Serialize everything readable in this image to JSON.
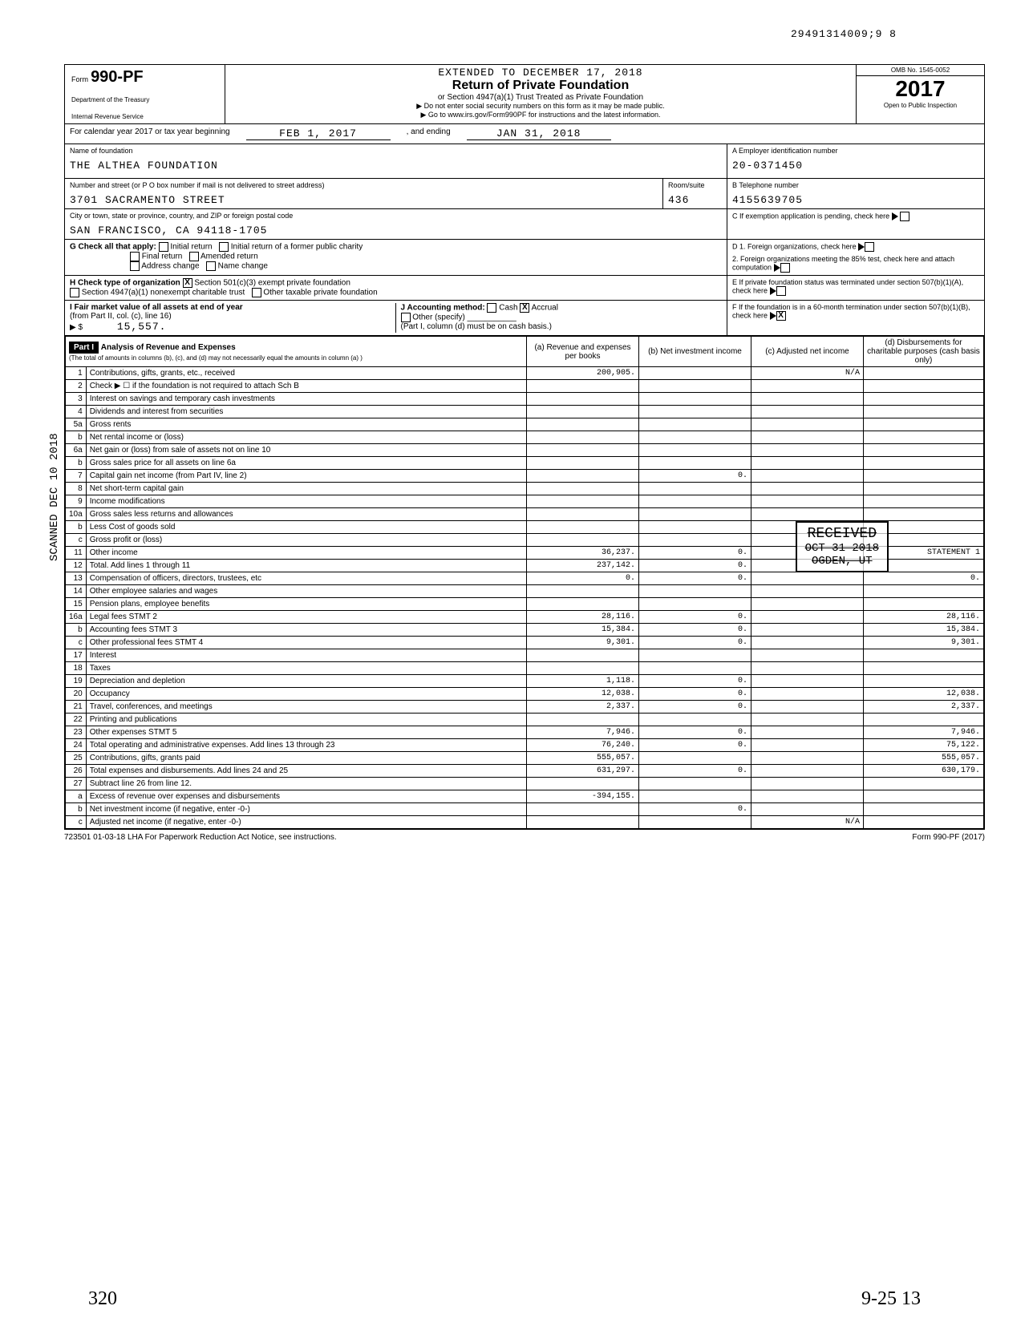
{
  "header_number": "29491314009;9  8",
  "form": {
    "label": "Form",
    "number": "990-PF",
    "dept1": "Department of the Treasury",
    "dept2": "Internal Revenue Service",
    "extended": "EXTENDED TO DECEMBER 17, 2018",
    "title": "Return of Private Foundation",
    "subtitle": "or Section 4947(a)(1) Trust Treated as Private Foundation",
    "instr1": "▶ Do not enter social security numbers on this form as it may be made public.",
    "instr2": "▶ Go to www.irs.gov/Form990PF for instructions and the latest information.",
    "omb": "OMB No. 1545-0052",
    "year": "2017",
    "inspect": "Open to Public Inspection"
  },
  "calendar": {
    "prefix": "For calendar year 2017 or tax year beginning",
    "begin": "FEB 1, 2017",
    "mid": ", and ending",
    "end": "JAN 31, 2018"
  },
  "foundation": {
    "name_label": "Name of foundation",
    "name": "THE ALTHEA FOUNDATION",
    "street_label": "Number and street (or P O  box number if mail is not delivered to street address)",
    "street": "3701 SACRAMENTO STREET",
    "room_label": "Room/suite",
    "room": "436",
    "city_label": "City or town, state or province, country, and ZIP or foreign postal code",
    "city": "SAN FRANCISCO, CA  94118-1705"
  },
  "right": {
    "a_label": "A Employer identification number",
    "a_value": "20-0371450",
    "b_label": "B Telephone number",
    "b_value": "4155639705",
    "c_label": "C  If exemption application is pending, check here",
    "d1": "D 1. Foreign organizations, check here",
    "d2": "2. Foreign organizations meeting the 85% test, check here and attach computation",
    "e": "E  If private foundation status was terminated under section 507(b)(1)(A), check here",
    "f": "F  If the foundation is in a 60-month termination under section 507(b)(1)(B), check here"
  },
  "section_g": {
    "label": "G  Check all that apply:",
    "opts": [
      "Initial return",
      "Final return",
      "Address change",
      "Initial return of a former public charity",
      "Amended return",
      "Name change"
    ]
  },
  "section_h": {
    "label": "H  Check type of organization",
    "opt1": "Section 501(c)(3) exempt private foundation",
    "opt2": "Section 4947(a)(1) nonexempt charitable trust",
    "opt3": "Other taxable private foundation"
  },
  "section_i": {
    "label": "I  Fair market value of all assets at end of year",
    "sub": "(from Part II, col. (c), line 16)",
    "value": "15,557.",
    "j_label": "J  Accounting method:",
    "cash": "Cash",
    "accrual": "Accrual",
    "other": "Other (specify)",
    "note": "(Part I, column (d) must be on cash basis.)"
  },
  "part1": {
    "header": "Part I",
    "title": "Analysis of Revenue and Expenses",
    "subtitle": "(The total of amounts in columns (b), (c), and (d) may not necessarily equal the amounts in column (a) )",
    "col_a": "(a) Revenue and expenses per books",
    "col_b": "(b) Net investment income",
    "col_c": "(c) Adjusted net income",
    "col_d": "(d) Disbursements for charitable purposes (cash basis only)"
  },
  "lines": [
    {
      "n": "1",
      "label": "Contributions, gifts, grants, etc., received",
      "a": "200,905.",
      "b": "",
      "c": "N/A",
      "d": ""
    },
    {
      "n": "2",
      "label": "Check ▶ ☐ if the foundation is not required to attach Sch B",
      "a": "",
      "b": "",
      "c": "",
      "d": ""
    },
    {
      "n": "3",
      "label": "Interest on savings and temporary cash investments",
      "a": "",
      "b": "",
      "c": "",
      "d": ""
    },
    {
      "n": "4",
      "label": "Dividends and interest from securities",
      "a": "",
      "b": "",
      "c": "",
      "d": ""
    },
    {
      "n": "5a",
      "label": "Gross rents",
      "a": "",
      "b": "",
      "c": "",
      "d": ""
    },
    {
      "n": "b",
      "label": "Net rental income or (loss)",
      "a": "",
      "b": "",
      "c": "",
      "d": ""
    },
    {
      "n": "6a",
      "label": "Net gain or (loss) from sale of assets not on line 10",
      "a": "",
      "b": "",
      "c": "",
      "d": ""
    },
    {
      "n": "b",
      "label": "Gross sales price for all assets on line 6a",
      "a": "",
      "b": "",
      "c": "",
      "d": ""
    },
    {
      "n": "7",
      "label": "Capital gain net income (from Part IV, line 2)",
      "a": "",
      "b": "0.",
      "c": "",
      "d": ""
    },
    {
      "n": "8",
      "label": "Net short-term capital gain",
      "a": "",
      "b": "",
      "c": "",
      "d": ""
    },
    {
      "n": "9",
      "label": "Income modifications",
      "a": "",
      "b": "",
      "c": "",
      "d": ""
    },
    {
      "n": "10a",
      "label": "Gross sales less returns and allowances",
      "a": "",
      "b": "",
      "c": "",
      "d": ""
    },
    {
      "n": "b",
      "label": "Less Cost of goods sold",
      "a": "",
      "b": "",
      "c": "",
      "d": ""
    },
    {
      "n": "c",
      "label": "Gross profit or (loss)",
      "a": "",
      "b": "",
      "c": "",
      "d": ""
    },
    {
      "n": "11",
      "label": "Other income",
      "a": "36,237.",
      "b": "0.",
      "c": "",
      "d": "STATEMENT 1"
    },
    {
      "n": "12",
      "label": "Total. Add lines 1 through 11",
      "a": "237,142.",
      "b": "0.",
      "c": "",
      "d": ""
    },
    {
      "n": "13",
      "label": "Compensation of officers, directors, trustees, etc",
      "a": "0.",
      "b": "0.",
      "c": "",
      "d": "0."
    },
    {
      "n": "14",
      "label": "Other employee salaries and wages",
      "a": "",
      "b": "",
      "c": "",
      "d": ""
    },
    {
      "n": "15",
      "label": "Pension plans, employee benefits",
      "a": "",
      "b": "",
      "c": "",
      "d": ""
    },
    {
      "n": "16a",
      "label": "Legal fees                    STMT 2",
      "a": "28,116.",
      "b": "0.",
      "c": "",
      "d": "28,116."
    },
    {
      "n": "b",
      "label": "Accounting fees               STMT 3",
      "a": "15,384.",
      "b": "0.",
      "c": "",
      "d": "15,384."
    },
    {
      "n": "c",
      "label": "Other professional fees       STMT 4",
      "a": "9,301.",
      "b": "0.",
      "c": "",
      "d": "9,301."
    },
    {
      "n": "17",
      "label": "Interest",
      "a": "",
      "b": "",
      "c": "",
      "d": ""
    },
    {
      "n": "18",
      "label": "Taxes",
      "a": "",
      "b": "",
      "c": "",
      "d": ""
    },
    {
      "n": "19",
      "label": "Depreciation and depletion",
      "a": "1,118.",
      "b": "0.",
      "c": "",
      "d": ""
    },
    {
      "n": "20",
      "label": "Occupancy",
      "a": "12,038.",
      "b": "0.",
      "c": "",
      "d": "12,038."
    },
    {
      "n": "21",
      "label": "Travel, conferences, and meetings",
      "a": "2,337.",
      "b": "0.",
      "c": "",
      "d": "2,337."
    },
    {
      "n": "22",
      "label": "Printing and publications",
      "a": "",
      "b": "",
      "c": "",
      "d": ""
    },
    {
      "n": "23",
      "label": "Other expenses                STMT 5",
      "a": "7,946.",
      "b": "0.",
      "c": "",
      "d": "7,946."
    },
    {
      "n": "24",
      "label": "Total operating and administrative expenses. Add lines 13 through 23",
      "a": "76,240.",
      "b": "0.",
      "c": "",
      "d": "75,122."
    },
    {
      "n": "25",
      "label": "Contributions, gifts, grants paid",
      "a": "555,057.",
      "b": "",
      "c": "",
      "d": "555,057."
    },
    {
      "n": "26",
      "label": "Total expenses and disbursements. Add lines 24 and 25",
      "a": "631,297.",
      "b": "0.",
      "c": "",
      "d": "630,179."
    },
    {
      "n": "27",
      "label": "Subtract line 26 from line 12.",
      "a": "",
      "b": "",
      "c": "",
      "d": ""
    },
    {
      "n": "a",
      "label": "Excess of revenue over expenses and disbursements",
      "a": "-394,155.",
      "b": "",
      "c": "",
      "d": ""
    },
    {
      "n": "b",
      "label": "Net investment income (if negative, enter -0-)",
      "a": "",
      "b": "0.",
      "c": "",
      "d": ""
    },
    {
      "n": "c",
      "label": "Adjusted net income (if negative, enter -0-)",
      "a": "",
      "b": "",
      "c": "N/A",
      "d": ""
    }
  ],
  "received": {
    "line1": "RECEIVED",
    "line2": "OCT 31 2018",
    "line3": "OGDEN, UT"
  },
  "vertical": "SCANNED DEC 10 2018",
  "footer": {
    "left": "723501 01-03-18   LHA  For Paperwork Reduction Act Notice, see instructions.",
    "right": "Form 990-PF (2017)"
  },
  "hand": {
    "bottom_left": "320",
    "bottom_right": "9-25   13"
  },
  "colors": {
    "text": "#000000",
    "bg": "#ffffff",
    "border": "#000000"
  }
}
